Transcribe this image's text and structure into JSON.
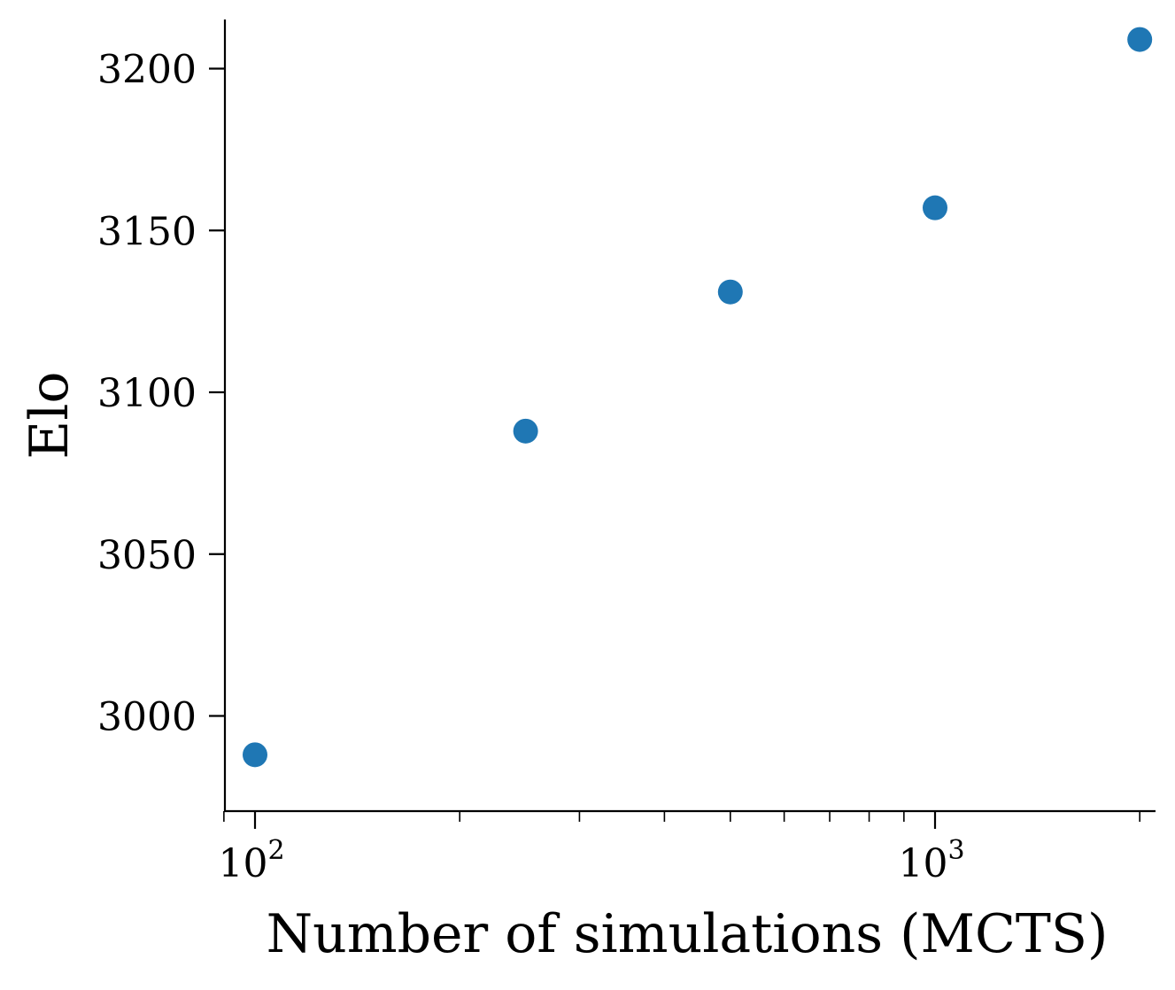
{
  "chart_data": {
    "type": "scatter",
    "title": "",
    "xlabel": "Number of simulations (MCTS)",
    "ylabel": "Elo",
    "xscale": "log",
    "xlim": [
      90,
      2330
    ],
    "ylim": [
      2970,
      3215
    ],
    "x_ticks": [
      {
        "value": 100,
        "label_base": "10",
        "label_exp": "2"
      },
      {
        "value": 1000,
        "label_base": "10",
        "label_exp": "3"
      }
    ],
    "x_minor_ticks": [
      90,
      200,
      300,
      400,
      500,
      600,
      700,
      800,
      900,
      2000
    ],
    "y_ticks": [
      3000,
      3050,
      3100,
      3150,
      3200
    ],
    "y_tick_labels": [
      "3000",
      "3050",
      "3100",
      "3150",
      "3200"
    ],
    "grid": false,
    "legend": null,
    "series": [
      {
        "name": "Elo",
        "color": "#1f77b4",
        "x": [
          100,
          250,
          500,
          1000,
          2000
        ],
        "y": [
          2988,
          3088,
          3131,
          3157,
          3209
        ]
      }
    ]
  }
}
